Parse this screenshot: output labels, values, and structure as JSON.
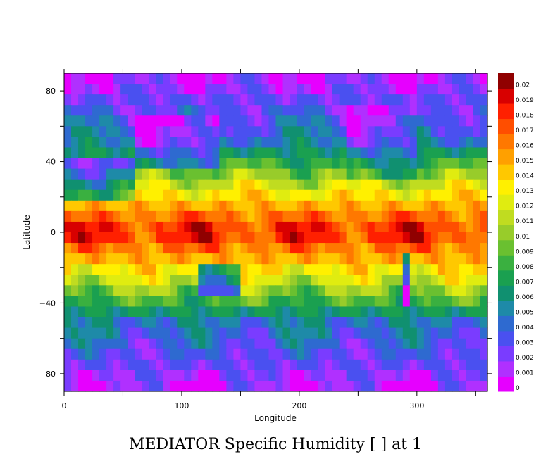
{
  "chart_data": {
    "type": "heatmap",
    "title": "MEDIATOR Specific Humidity [ ] at 1",
    "xlabel": "Longitude",
    "ylabel": "Latitude",
    "xlim": [
      0,
      360
    ],
    "ylim": [
      -90,
      90
    ],
    "x_ticks": [
      0,
      100,
      200,
      300
    ],
    "y_ticks": [
      -80,
      -40,
      0,
      40,
      80
    ],
    "x_tick_labels": [
      "0",
      "100",
      "200",
      "300"
    ],
    "y_tick_labels": [
      "−80",
      "−40",
      "0",
      "40",
      "80"
    ],
    "colorbar": {
      "min": 0,
      "max": 0.02,
      "labels": [
        "0",
        "0.001",
        "0.002",
        "0.003",
        "0.004",
        "0.005",
        "0.006",
        "0.007",
        "0.008",
        "0.009",
        "0.01",
        "0.011",
        "0.012",
        "0.013",
        "0.014",
        "0.015",
        "0.016",
        "0.017",
        "0.018",
        "0.019",
        "0.02"
      ],
      "colors": [
        "#e600ff",
        "#b030ff",
        "#7a3cff",
        "#4a50f0",
        "#2e6ad0",
        "#1e8aa8",
        "#109070",
        "#1aa050",
        "#3ab040",
        "#6ac030",
        "#98cc2a",
        "#c0dc20",
        "#e0ec10",
        "#fff000",
        "#ffc800",
        "#ffa000",
        "#ff7800",
        "#ff4e00",
        "#ff2000",
        "#d80000",
        "#900000"
      ]
    },
    "field_description_values": {
      "tropics_max": 0.018,
      "subtropics": 0.012,
      "midlatitudes": 0.005,
      "polar": 0.001
    }
  }
}
